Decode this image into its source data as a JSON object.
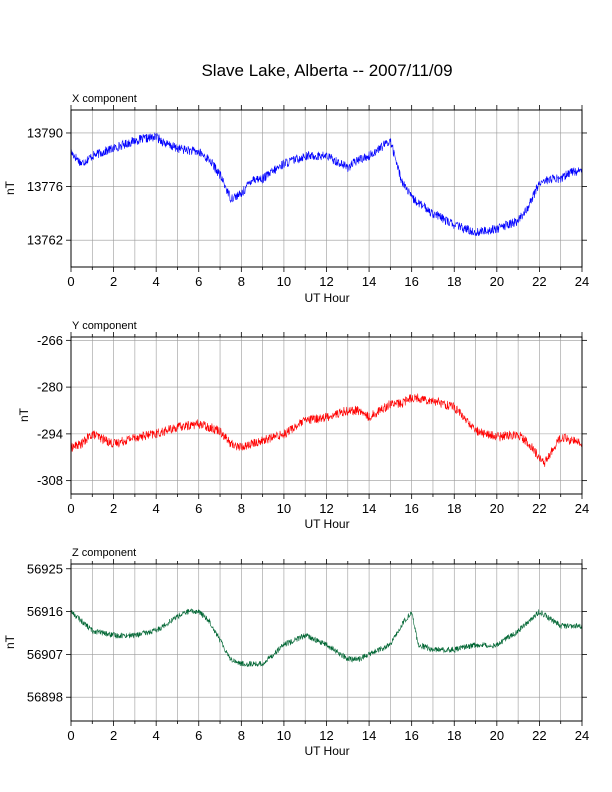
{
  "title": "Slave Lake, Alberta -- 2007/11/09",
  "chart_data": [
    {
      "type": "line",
      "panel_label": "X component",
      "ylabel": "nT",
      "xlabel": "UT Hour",
      "xlim": [
        0,
        24
      ],
      "ylim": [
        13755,
        13796
      ],
      "xticks": [
        0,
        2,
        4,
        6,
        8,
        10,
        12,
        14,
        16,
        18,
        20,
        22,
        24
      ],
      "yticks": [
        13762,
        13776,
        13790
      ],
      "grid": true,
      "color": "#0000ff",
      "noise": 1.2,
      "x": [
        0,
        0.5,
        1,
        2,
        3,
        4,
        4.5,
        5,
        6,
        6.5,
        7,
        7.5,
        8,
        8.5,
        9,
        10,
        11,
        12,
        13,
        13.5,
        14,
        14.5,
        15,
        15.5,
        16,
        17,
        18,
        19,
        20,
        20.5,
        21,
        21.5,
        22,
        22.5,
        23,
        23.5,
        24
      ],
      "y": [
        13785,
        13782,
        13784,
        13786,
        13788,
        13789,
        13787,
        13786,
        13785,
        13783,
        13779,
        13773,
        13774,
        13778,
        13778,
        13782,
        13784,
        13784,
        13781,
        13783,
        13784,
        13786,
        13788,
        13778,
        13773,
        13769,
        13766,
        13764,
        13765,
        13766,
        13767,
        13771,
        13777,
        13778,
        13778,
        13780,
        13780
      ]
    },
    {
      "type": "line",
      "panel_label": "Y component",
      "ylabel": "nT",
      "xlabel": "UT Hour",
      "xlim": [
        0,
        24
      ],
      "ylim": [
        -312,
        -265
      ],
      "xticks": [
        0,
        2,
        4,
        6,
        8,
        10,
        12,
        14,
        16,
        18,
        20,
        22,
        24
      ],
      "yticks": [
        -308,
        -294,
        -280,
        -266
      ],
      "grid": true,
      "color": "#ff0000",
      "noise": 1.4,
      "x": [
        0,
        0.5,
        1,
        2,
        3,
        4,
        5,
        6,
        6.5,
        7,
        7.5,
        8,
        9,
        10,
        11,
        12,
        13,
        13.5,
        14,
        15,
        15.5,
        16,
        17,
        18,
        19,
        20,
        21,
        21.5,
        22,
        22.2,
        23,
        24
      ],
      "y": [
        -298,
        -297,
        -294,
        -297,
        -295,
        -294,
        -292,
        -291,
        -292,
        -293,
        -297,
        -298,
        -296,
        -294,
        -290,
        -289,
        -287,
        -287,
        -289,
        -285,
        -285,
        -283,
        -284,
        -286,
        -293,
        -295,
        -294,
        -297,
        -301,
        -303,
        -295,
        -297
      ]
    },
    {
      "type": "line",
      "panel_label": "Z component",
      "ylabel": "nT",
      "xlabel": "UT Hour",
      "xlim": [
        0,
        24
      ],
      "ylim": [
        56893,
        56926
      ],
      "xticks": [
        0,
        2,
        4,
        6,
        8,
        10,
        12,
        14,
        16,
        18,
        20,
        22,
        24
      ],
      "yticks": [
        56898,
        56907,
        56916,
        56925
      ],
      "grid": true,
      "color": "#006633",
      "noise": 0.6,
      "x": [
        0,
        0.5,
        1,
        2,
        3,
        4,
        5,
        5.5,
        6,
        6.5,
        7,
        7.5,
        8,
        9,
        10,
        11,
        12,
        13,
        13.5,
        14,
        15,
        15.5,
        16,
        16.3,
        17,
        18,
        19,
        20,
        21,
        21.5,
        22,
        23,
        24
      ],
      "y": [
        56916,
        56914,
        56912,
        56911,
        56911,
        56912,
        56915,
        56916,
        56916,
        56914,
        56910,
        56906,
        56905,
        56905,
        56909,
        56911,
        56909,
        56906,
        56906,
        56907,
        56909,
        56913,
        56916,
        56909,
        56908,
        56908,
        56909,
        56909,
        56912,
        56914,
        56916,
        56913,
        56913
      ]
    }
  ]
}
